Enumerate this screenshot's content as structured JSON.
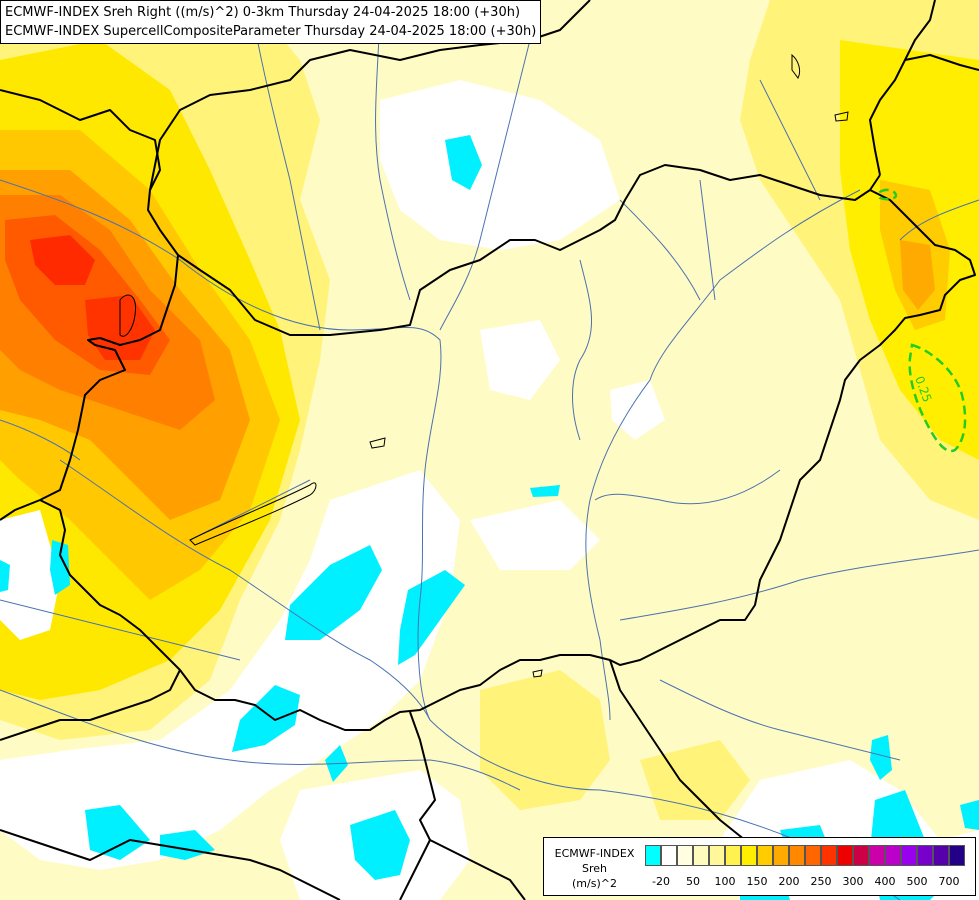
{
  "title": {
    "line1": "ECMWF-INDEX Sreh Right ((m/s)^2) 0-3km Thursday 24-04-2025 18:00 (+30h)",
    "line2": "ECMWF-INDEX SupercellCompositeParameter Thursday 24-04-2025 18:00 (+30h)"
  },
  "legend": {
    "title_lines": [
      "ECMWF-INDEX",
      "Sreh",
      "(m/s)^2"
    ],
    "colors": [
      "#00ffff",
      "#ffffff",
      "#fffee0",
      "#fffbbd",
      "#fff799",
      "#fff24f",
      "#ffee00",
      "#ffcc00",
      "#ffaa00",
      "#ff8800",
      "#ff6600",
      "#ff3300",
      "#ee0000",
      "#cc0044",
      "#cc00aa",
      "#bb00cc",
      "#9900ee",
      "#7700cc",
      "#5500aa",
      "#220088"
    ],
    "ticks": [
      "-20",
      "50",
      "100",
      "150",
      "200",
      "250",
      "300",
      "400",
      "500",
      "700"
    ]
  },
  "contour_label": "0.25",
  "colors": {
    "border": "#000000",
    "river": "#4a72b0",
    "scp_contour": "#22cc22"
  }
}
